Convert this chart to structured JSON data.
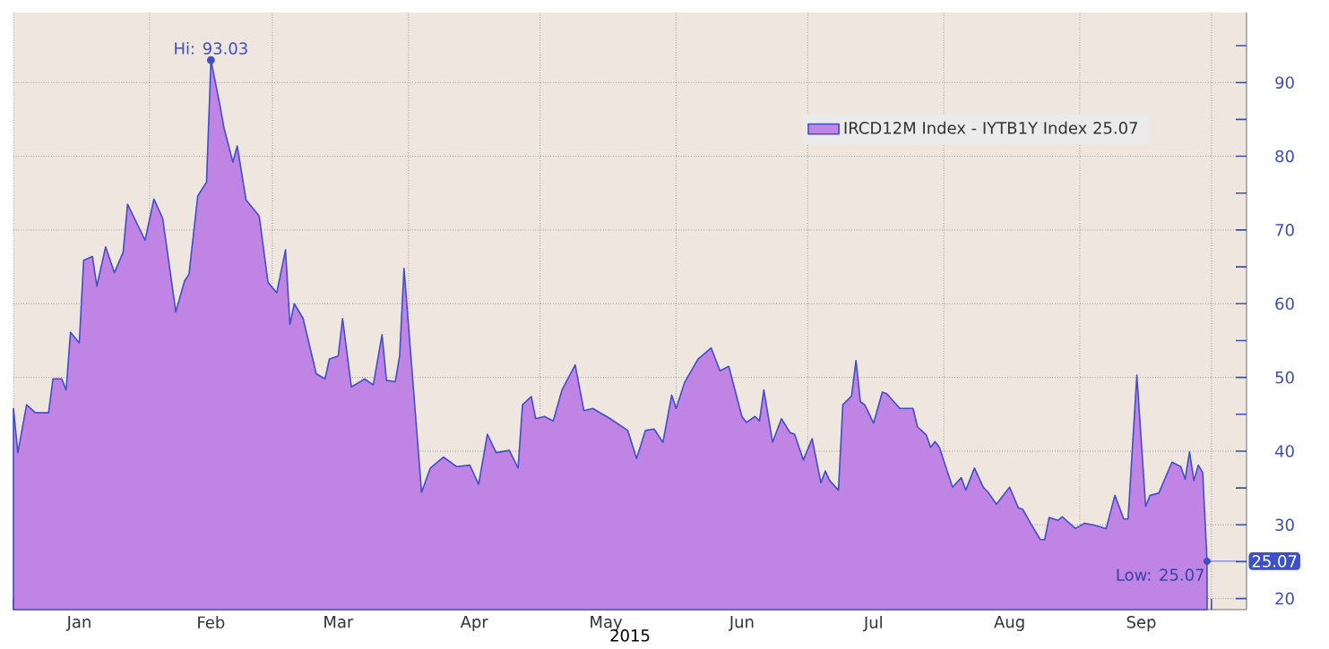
{
  "chart_data": {
    "type": "area",
    "xlabel": "2015",
    "grid": true,
    "legend": "top right",
    "marker": "none",
    "line_style": "solid",
    "xlim": [
      "2015-01-01",
      "2015-10-09"
    ],
    "ylim": [
      18.5,
      99.5
    ],
    "xticks": [
      {
        "value": "2015-01-01",
        "label": null
      },
      {
        "value": "2015-01-16",
        "label": "Jan"
      },
      {
        "value": "2015-02-01",
        "label": null
      },
      {
        "value": "2015-02-15",
        "label": "Feb"
      },
      {
        "value": "2015-03-01",
        "label": null
      },
      {
        "value": "2015-03-16",
        "label": "Mar"
      },
      {
        "value": "2015-04-01",
        "label": null
      },
      {
        "value": "2015-04-16",
        "label": "Apr"
      },
      {
        "value": "2015-05-01",
        "label": null
      },
      {
        "value": "2015-05-16",
        "label": "May"
      },
      {
        "value": "2015-06-01",
        "label": null
      },
      {
        "value": "2015-06-16",
        "label": "Jun"
      },
      {
        "value": "2015-07-01",
        "label": null
      },
      {
        "value": "2015-07-16",
        "label": "Jul"
      },
      {
        "value": "2015-08-01",
        "label": null
      },
      {
        "value": "2015-08-16",
        "label": "Aug"
      },
      {
        "value": "2015-09-01",
        "label": null
      },
      {
        "value": "2015-09-15",
        "label": "Sep"
      },
      {
        "value": "2015-10-01",
        "label": null
      }
    ],
    "yticks": [
      20,
      {
        "value": 25,
        "label": null
      },
      30,
      {
        "value": 35,
        "label": null
      },
      40,
      {
        "value": 45,
        "label": null
      },
      50,
      {
        "value": 55,
        "label": null
      },
      60,
      {
        "value": 65,
        "label": null
      },
      70,
      {
        "value": 75,
        "label": null
      },
      80,
      {
        "value": 85,
        "label": null
      },
      90,
      {
        "value": 95,
        "label": null
      }
    ],
    "annotations": [
      {
        "text": "Hi: 93.03",
        "x": "2015-02-15",
        "y": 93.03
      },
      {
        "text": "Low: 25.07",
        "x": "2015-09-30",
        "y": 25.07
      },
      {
        "text": "25.07",
        "x": "2015-09-30",
        "y": 25.07
      }
    ],
    "series": [
      {
        "name": "IRCD12M Index - IYTB1Y Index 25.07",
        "color": "#c084e4",
        "x": [
          "2015-01-01",
          "2015-01-02",
          "2015-01-04",
          "2015-01-06",
          "2015-01-09",
          "2015-01-10",
          "2015-01-12",
          "2015-01-13",
          "2015-01-14",
          "2015-01-16",
          "2015-01-17",
          "2015-01-19",
          "2015-01-20",
          "2015-01-22",
          "2015-01-24",
          "2015-01-26",
          "2015-01-27",
          "2015-01-31",
          "2015-02-02",
          "2015-02-04",
          "2015-02-07",
          "2015-02-09",
          "2015-02-10",
          "2015-02-12",
          "2015-02-14",
          "2015-02-15",
          "2015-02-17",
          "2015-02-18",
          "2015-02-20",
          "2015-02-21",
          "2015-02-23",
          "2015-02-26",
          "2015-02-28",
          "2015-03-02",
          "2015-03-04",
          "2015-03-05",
          "2015-03-06",
          "2015-03-08",
          "2015-03-11",
          "2015-03-13",
          "2015-03-14",
          "2015-03-16",
          "2015-03-17",
          "2015-03-19",
          "2015-03-21",
          "2015-03-22",
          "2015-03-24",
          "2015-03-26",
          "2015-03-27",
          "2015-03-29",
          "2015-03-30",
          "2015-03-31",
          "2015-04-04",
          "2015-04-06",
          "2015-04-09",
          "2015-04-12",
          "2015-04-15",
          "2015-04-17",
          "2015-04-19",
          "2015-04-21",
          "2015-04-24",
          "2015-04-26",
          "2015-04-27",
          "2015-04-29",
          "2015-04-30",
          "2015-05-02",
          "2015-05-04",
          "2015-05-06",
          "2015-05-09",
          "2015-05-11",
          "2015-05-13",
          "2015-05-17",
          "2015-05-19",
          "2015-05-21",
          "2015-05-23",
          "2015-05-25",
          "2015-05-27",
          "2015-05-29",
          "2015-05-31",
          "2015-06-01",
          "2015-06-03",
          "2015-06-06",
          "2015-06-09",
          "2015-06-11",
          "2015-06-13",
          "2015-06-16",
          "2015-06-17",
          "2015-06-19",
          "2015-06-20",
          "2015-06-21",
          "2015-06-23",
          "2015-06-25",
          "2015-06-27",
          "2015-06-28",
          "2015-06-30",
          "2015-07-02",
          "2015-07-04",
          "2015-07-05",
          "2015-07-06",
          "2015-07-08",
          "2015-07-09",
          "2015-07-11",
          "2015-07-12",
          "2015-07-13",
          "2015-07-14",
          "2015-07-16",
          "2015-07-18",
          "2015-07-19",
          "2015-07-22",
          "2015-07-25",
          "2015-07-26",
          "2015-07-28",
          "2015-07-29",
          "2015-07-30",
          "2015-07-31",
          "2015-08-03",
          "2015-08-05",
          "2015-08-06",
          "2015-08-08",
          "2015-08-10",
          "2015-08-11",
          "2015-08-13",
          "2015-08-16",
          "2015-08-18",
          "2015-08-19",
          "2015-08-21",
          "2015-08-23",
          "2015-08-24",
          "2015-08-25",
          "2015-08-27",
          "2015-08-28",
          "2015-08-31",
          "2015-09-02",
          "2015-09-04",
          "2015-09-07",
          "2015-09-09",
          "2015-09-11",
          "2015-09-12",
          "2015-09-14",
          "2015-09-16",
          "2015-09-17",
          "2015-09-19",
          "2015-09-22",
          "2015-09-24",
          "2015-09-25",
          "2015-09-26",
          "2015-09-27",
          "2015-09-28",
          "2015-09-29",
          "2015-09-30"
        ],
        "values": [
          45.8,
          39.8,
          46.3,
          45.2,
          45.2,
          49.8,
          49.8,
          48.3,
          56.1,
          54.7,
          65.9,
          66.4,
          62.4,
          67.7,
          64.2,
          67.0,
          73.5,
          68.6,
          74.2,
          71.6,
          58.9,
          63.1,
          64.0,
          74.6,
          76.5,
          93.03,
          87.1,
          83.8,
          79.2,
          81.4,
          74.1,
          71.9,
          62.9,
          61.5,
          67.3,
          57.2,
          60.0,
          58.0,
          50.5,
          49.8,
          52.5,
          52.9,
          58.0,
          48.7,
          49.4,
          49.8,
          49.0,
          55.8,
          49.6,
          49.4,
          52.9,
          64.8,
          34.4,
          37.7,
          39.2,
          37.9,
          38.1,
          35.5,
          42.3,
          39.8,
          40.1,
          37.7,
          46.3,
          47.4,
          44.4,
          44.7,
          44.1,
          48.3,
          51.7,
          45.5,
          45.8,
          44.4,
          43.6,
          42.8,
          39.0,
          42.8,
          43.0,
          41.2,
          47.6,
          45.8,
          49.4,
          52.5,
          54.0,
          50.9,
          51.5,
          44.7,
          43.9,
          44.7,
          44.1,
          48.3,
          41.2,
          44.4,
          42.5,
          42.3,
          38.8,
          41.7,
          35.7,
          37.3,
          36.0,
          34.7,
          46.3,
          47.5,
          52.3,
          46.7,
          46.3,
          43.8,
          48.0,
          47.8,
          45.8,
          45.8,
          43.3,
          42.2,
          40.5,
          41.3,
          40.5,
          35.1,
          36.4,
          34.7,
          37.7,
          35.1,
          34.5,
          32.8,
          35.1,
          32.3,
          32.1,
          30.0,
          28.0,
          28.0,
          31.0,
          30.6,
          31.1,
          29.5,
          30.2,
          30.0,
          29.5,
          34.0,
          30.8,
          30.8,
          50.3,
          32.5,
          34.0,
          34.3,
          38.5,
          37.9,
          36.2,
          39.9,
          36.0,
          38.1,
          37.1,
          25.07
        ]
      }
    ]
  }
}
